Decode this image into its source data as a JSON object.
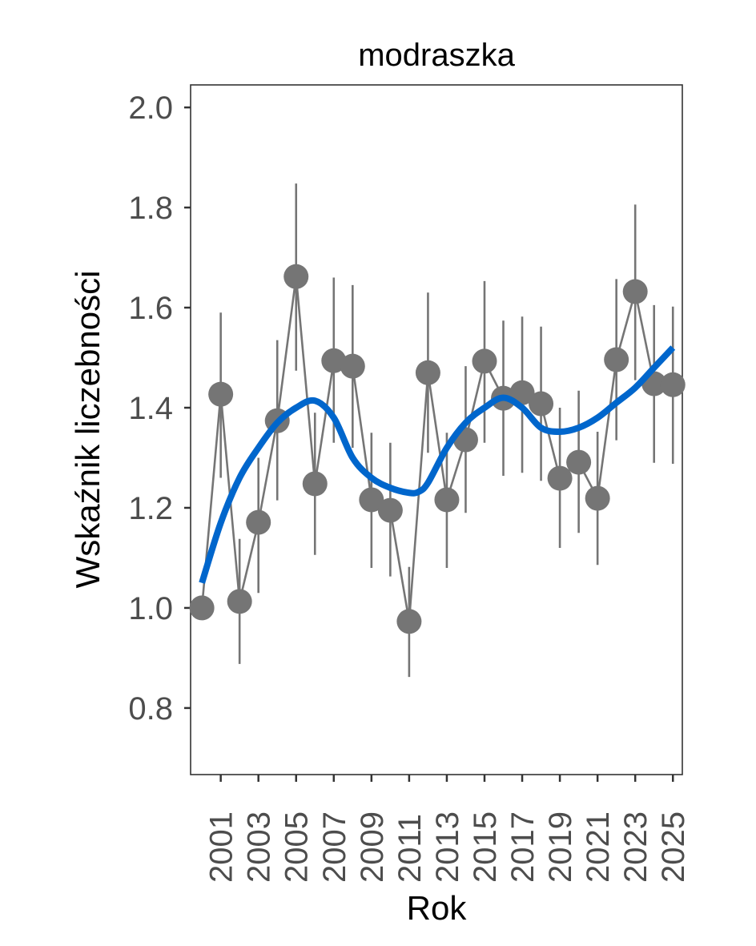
{
  "chart_data": {
    "type": "line",
    "title": "modraszka",
    "xlabel": "Rok",
    "ylabel": "Wskaźnik liczebności",
    "ylim": [
      0.667,
      2.045
    ],
    "xlim": [
      1999.4,
      2025.5
    ],
    "yticks": [
      "0.8",
      "1.0",
      "1.2",
      "1.4",
      "1.6",
      "1.8",
      "2.0"
    ],
    "xticks": [
      "2001",
      "2003",
      "2005",
      "2007",
      "2009",
      "2011",
      "2013",
      "2015",
      "2017",
      "2019",
      "2021",
      "2023",
      "2025"
    ],
    "grid": false,
    "colors": {
      "points": "#757575",
      "smooth": "#0066CC",
      "axis_text": "#4D4D4D"
    },
    "series": [
      {
        "name": "index",
        "x": [
          2000,
          2001,
          2002,
          2003,
          2004,
          2005,
          2006,
          2007,
          2008,
          2009,
          2010,
          2011,
          2012,
          2013,
          2014,
          2015,
          2016,
          2017,
          2018,
          2019,
          2020,
          2021,
          2022,
          2023,
          2024,
          2025
        ],
        "y": [
          1.0,
          1.427,
          1.013,
          1.171,
          1.374,
          1.662,
          1.248,
          1.494,
          1.483,
          1.216,
          1.195,
          0.973,
          1.47,
          1.216,
          1.336,
          1.493,
          1.419,
          1.43,
          1.408,
          1.259,
          1.291,
          1.219,
          1.496,
          1.632,
          1.448,
          1.446
        ],
        "lower": [
          null,
          1.26,
          0.888,
          1.03,
          1.215,
          1.474,
          1.106,
          1.33,
          1.32,
          1.08,
          1.063,
          0.862,
          1.31,
          1.08,
          1.19,
          1.33,
          1.264,
          1.27,
          1.254,
          1.12,
          1.15,
          1.086,
          1.335,
          1.455,
          1.29,
          1.288
        ],
        "upper": [
          null,
          1.59,
          1.138,
          1.3,
          1.535,
          1.848,
          1.39,
          1.66,
          1.645,
          1.35,
          1.33,
          1.082,
          1.63,
          1.35,
          1.483,
          1.653,
          1.574,
          1.582,
          1.562,
          1.4,
          1.434,
          1.352,
          1.657,
          1.806,
          1.605,
          1.602
        ]
      },
      {
        "name": "smooth",
        "x": [
          2000,
          2001,
          2002,
          2003,
          2004,
          2005,
          2006,
          2007,
          2008,
          2009,
          2010,
          2011,
          2011.5,
          2012,
          2013,
          2014,
          2015,
          2016,
          2017,
          2018,
          2019,
          2020,
          2021,
          2022,
          2023,
          2024,
          2025
        ],
        "y": [
          1.05,
          1.17,
          1.26,
          1.32,
          1.37,
          1.4,
          1.414,
          1.38,
          1.3,
          1.26,
          1.24,
          1.23,
          1.232,
          1.25,
          1.32,
          1.37,
          1.4,
          1.42,
          1.4,
          1.36,
          1.352,
          1.36,
          1.38,
          1.41,
          1.44,
          1.48,
          1.52
        ]
      }
    ]
  }
}
